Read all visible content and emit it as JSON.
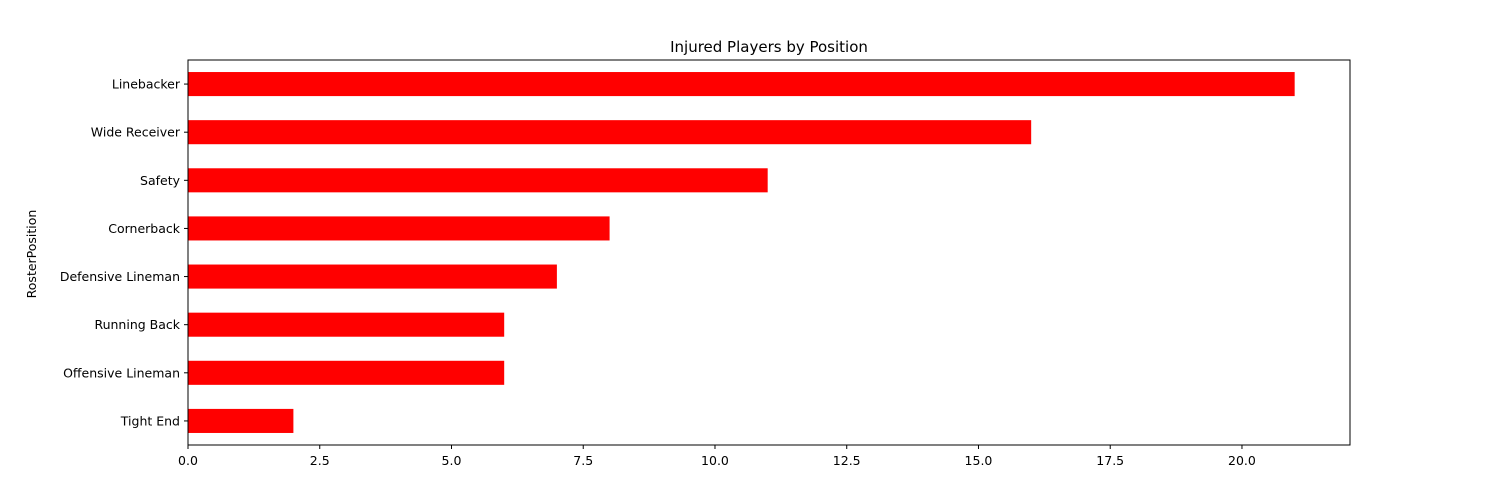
{
  "chart_data": {
    "type": "bar",
    "orientation": "horizontal",
    "title": "Injured Players by Position",
    "xlabel": "",
    "ylabel": "RosterPosition",
    "categories": [
      "Linebacker",
      "Wide Receiver",
      "Safety",
      "Cornerback",
      "Defensive Lineman",
      "Running Back",
      "Offensive Lineman",
      "Tight End"
    ],
    "values": [
      21,
      16,
      11,
      8,
      7,
      6,
      6,
      2
    ],
    "xlim": [
      0,
      22.05
    ],
    "xticks": [
      0,
      2.5,
      5,
      7.5,
      10,
      12.5,
      15,
      17.5,
      20
    ],
    "xtick_labels": [
      "0.0",
      "2.5",
      "5.0",
      "7.5",
      "10.0",
      "12.5",
      "15.0",
      "17.5",
      "20.0"
    ],
    "bar_color": "#ff0000",
    "grid": false,
    "legend": "none"
  }
}
